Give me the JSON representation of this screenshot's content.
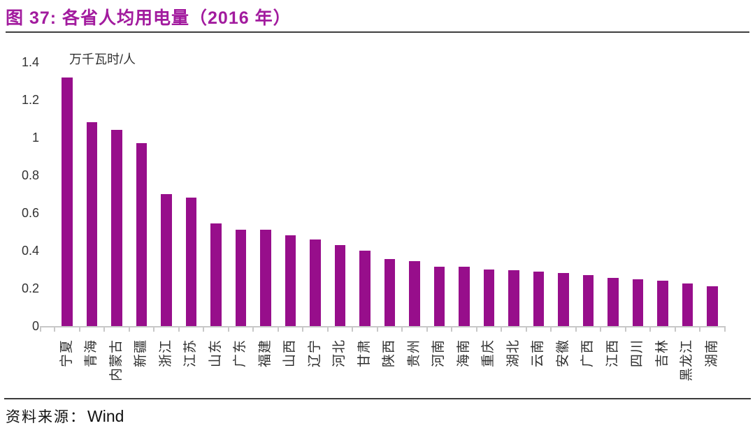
{
  "figure": {
    "title": "图 37:  各省人均用电量（2016 年）",
    "source_label": "资料来源：",
    "source_value": "Wind"
  },
  "colors": {
    "title_accent": "#a21b9e",
    "bar": "#970e8b",
    "axis": "#c8c8c8",
    "rule": "#3f3f3f",
    "text": "#333333"
  },
  "chart_data": {
    "type": "bar",
    "title": "各省人均用电量（2016 年）",
    "unit_label": "万千瓦时/人",
    "xlabel": "",
    "ylabel": "万千瓦时/人",
    "ylim": [
      0,
      1.4
    ],
    "ytick_labels": [
      "0",
      "0.2",
      "0.4",
      "0.6",
      "0.8",
      "1",
      "1.2",
      "1.4"
    ],
    "grid": false,
    "legend_position": "none",
    "bar_color": "#970e8b",
    "categories": [
      "宁夏",
      "青海",
      "内蒙古",
      "新疆",
      "浙江",
      "江苏",
      "山东",
      "广东",
      "福建",
      "山西",
      "辽宁",
      "河北",
      "甘肃",
      "陕西",
      "贵州",
      "河南",
      "海南",
      "重庆",
      "湖北",
      "云南",
      "安徽",
      "广西",
      "江西",
      "四川",
      "吉林",
      "黑龙江",
      "湖南"
    ],
    "values": [
      1.32,
      1.08,
      1.04,
      0.97,
      0.7,
      0.68,
      0.545,
      0.51,
      0.51,
      0.48,
      0.46,
      0.43,
      0.4,
      0.355,
      0.345,
      0.315,
      0.315,
      0.3,
      0.295,
      0.29,
      0.28,
      0.27,
      0.255,
      0.25,
      0.24,
      0.225,
      0.21
    ]
  }
}
